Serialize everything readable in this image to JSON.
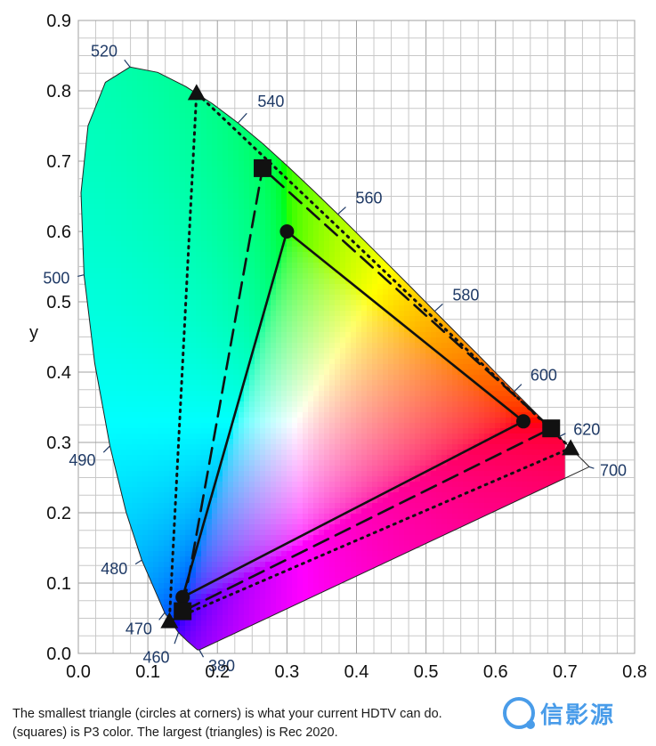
{
  "chart_data": {
    "type": "scatter",
    "title": "",
    "xlabel": "",
    "ylabel": "y",
    "xlim": [
      0.0,
      0.8
    ],
    "ylim": [
      0.0,
      0.9
    ],
    "grid": "minor-major",
    "x_ticks": [
      "0.0",
      "0.1",
      "0.2",
      "0.3",
      "0.4",
      "0.5",
      "0.6",
      "0.7",
      "0.8"
    ],
    "y_ticks": [
      "0.0",
      "0.1",
      "0.2",
      "0.3",
      "0.4",
      "0.5",
      "0.6",
      "0.7",
      "0.8",
      "0.9"
    ],
    "locus": {
      "points": [
        [
          0.1741,
          0.005
        ],
        [
          0.1714,
          0.0051
        ],
        [
          0.1689,
          0.0069
        ],
        [
          0.1644,
          0.0109
        ],
        [
          0.1566,
          0.0177
        ],
        [
          0.144,
          0.0297
        ],
        [
          0.1241,
          0.0578
        ],
        [
          0.0913,
          0.1327
        ],
        [
          0.0687,
          0.2007
        ],
        [
          0.0454,
          0.295
        ],
        [
          0.0235,
          0.4127
        ],
        [
          0.0082,
          0.5384
        ],
        [
          0.0039,
          0.6548
        ],
        [
          0.0139,
          0.7502
        ],
        [
          0.0389,
          0.812
        ],
        [
          0.0743,
          0.8338
        ],
        [
          0.1142,
          0.8262
        ],
        [
          0.1547,
          0.8059
        ],
        [
          0.1929,
          0.7816
        ],
        [
          0.2296,
          0.7543
        ],
        [
          0.2658,
          0.7243
        ],
        [
          0.3016,
          0.6923
        ],
        [
          0.3373,
          0.6589
        ],
        [
          0.3731,
          0.6245
        ],
        [
          0.4087,
          0.5896
        ],
        [
          0.4441,
          0.5547
        ],
        [
          0.4788,
          0.5202
        ],
        [
          0.5125,
          0.4866
        ],
        [
          0.5448,
          0.4544
        ],
        [
          0.5752,
          0.4242
        ],
        [
          0.6029,
          0.3965
        ],
        [
          0.627,
          0.3725
        ],
        [
          0.6482,
          0.3514
        ],
        [
          0.6658,
          0.334
        ],
        [
          0.6801,
          0.3197
        ],
        [
          0.6915,
          0.3083
        ],
        [
          0.7006,
          0.2993
        ],
        [
          0.7079,
          0.292
        ],
        [
          0.714,
          0.2859
        ],
        [
          0.719,
          0.2809
        ],
        [
          0.723,
          0.277
        ],
        [
          0.726,
          0.274
        ],
        [
          0.7347,
          0.2653
        ]
      ],
      "wavelength_labels": [
        {
          "nm": "520",
          "x": 0.0743,
          "y": 0.8338
        },
        {
          "nm": "540",
          "x": 0.2296,
          "y": 0.7543
        },
        {
          "nm": "560",
          "x": 0.3731,
          "y": 0.6245
        },
        {
          "nm": "580",
          "x": 0.5125,
          "y": 0.4866
        },
        {
          "nm": "600",
          "x": 0.627,
          "y": 0.3725
        },
        {
          "nm": "620",
          "x": 0.6915,
          "y": 0.3083
        },
        {
          "nm": "700",
          "x": 0.7347,
          "y": 0.2653
        },
        {
          "nm": "500",
          "x": 0.0082,
          "y": 0.5384
        },
        {
          "nm": "490",
          "x": 0.0454,
          "y": 0.295
        },
        {
          "nm": "480",
          "x": 0.0913,
          "y": 0.1327
        },
        {
          "nm": "470",
          "x": 0.1241,
          "y": 0.0578
        },
        {
          "nm": "460",
          "x": 0.144,
          "y": 0.0297
        },
        {
          "nm": "380",
          "x": 0.1741,
          "y": 0.005
        }
      ]
    },
    "series": [
      {
        "marker": "circle",
        "line": "solid",
        "points": [
          [
            0.64,
            0.33
          ],
          [
            0.3,
            0.6
          ],
          [
            0.15,
            0.08
          ]
        ]
      },
      {
        "marker": "square",
        "line": "dashed",
        "points": [
          [
            0.68,
            0.32
          ],
          [
            0.265,
            0.69
          ],
          [
            0.15,
            0.06
          ]
        ]
      },
      {
        "marker": "triangle",
        "line": "dotted",
        "points": [
          [
            0.708,
            0.292
          ],
          [
            0.17,
            0.797
          ],
          [
            0.131,
            0.046
          ]
        ]
      }
    ]
  },
  "caption": {
    "line1": "The smallest triangle (circles at corners) is what your current HDTV can do.",
    "line2": "(squares) is P3 color. The largest (triangles) is Rec 2020."
  },
  "watermark": "信影源"
}
